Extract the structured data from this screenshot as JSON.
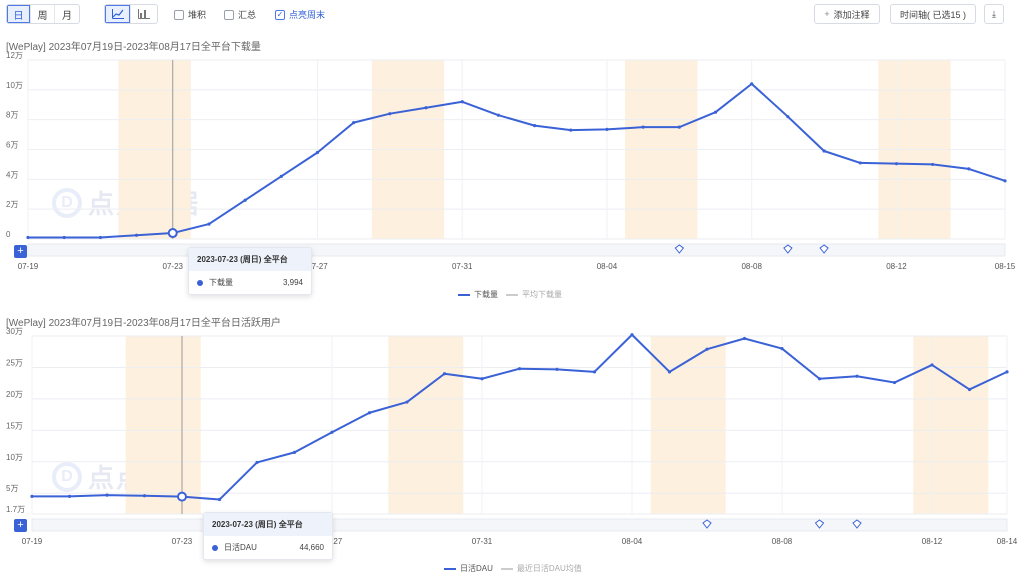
{
  "toolbar": {
    "granularity": [
      "日",
      "周",
      "月"
    ],
    "chart_types": [
      "line-chart-icon",
      "bar-chart-icon"
    ],
    "checks": [
      {
        "label": "堆积",
        "checked": false
      },
      {
        "label": "汇总",
        "checked": false
      },
      {
        "label": "点亮周末",
        "checked": true
      }
    ],
    "add_annotation": "添加注释",
    "timeline": "时间轴( 已选15 )",
    "download_icon": "download-icon"
  },
  "charts": [
    {
      "title": "[WePlay]  2023年07月19日-2023年08月17日全平台下载量",
      "y_ticks": [
        "0",
        "2万",
        "4万",
        "6万",
        "8万",
        "10万",
        "12万"
      ],
      "x_ticks": [
        "07-19",
        "07-23",
        "07-27",
        "07-31",
        "08-04",
        "08-08",
        "08-12",
        "08-15"
      ],
      "tooltip": {
        "header": "2023-07-23 (周日) 全平台",
        "series": "下载量",
        "value": "3,994"
      },
      "legend": [
        {
          "name": "下载量",
          "active": true
        },
        {
          "name": "平均下载量",
          "active": false
        }
      ],
      "watermark": "点点数据"
    },
    {
      "title": "[WePlay]  2023年07月19日-2023年08月17日全平台日活跃用户",
      "y_ticks": [
        "1.7万",
        "5万",
        "10万",
        "15万",
        "20万",
        "25万",
        "30万"
      ],
      "x_ticks": [
        "07-19",
        "07-23",
        "07-27",
        "07-31",
        "08-04",
        "08-08",
        "08-12",
        "08-14"
      ],
      "tooltip": {
        "header": "2023-07-23 (周日) 全平台",
        "series": "日活DAU",
        "value": "44,660"
      },
      "legend": [
        {
          "name": "日活DAU",
          "active": true
        },
        {
          "name": "最近日活DAU均值",
          "active": false
        }
      ],
      "watermark": "点点数据"
    }
  ],
  "chart_data": [
    {
      "type": "line",
      "title": "[WePlay]  2023年07月19日-2023年08月17日全平台下载量",
      "x": [
        "07-19",
        "07-20",
        "07-21",
        "07-22",
        "07-23",
        "07-24",
        "07-25",
        "07-26",
        "07-27",
        "07-28",
        "07-29",
        "07-30",
        "07-31",
        "08-01",
        "08-02",
        "08-03",
        "08-04",
        "08-05",
        "08-06",
        "08-07",
        "08-08",
        "08-09",
        "08-10",
        "08-11",
        "08-12",
        "08-13",
        "08-14",
        "08-15"
      ],
      "series": [
        {
          "name": "下载量",
          "values": [
            1000,
            1000,
            1000,
            2500,
            3994,
            10000,
            26000,
            42000,
            58000,
            78000,
            84000,
            88000,
            92000,
            83000,
            76000,
            73000,
            73500,
            75000,
            75000,
            85000,
            104000,
            82000,
            59000,
            51000,
            50500,
            50000,
            47000,
            39000
          ]
        }
      ],
      "ylim": [
        0,
        120000
      ],
      "y_ticks": [
        0,
        20000,
        40000,
        60000,
        80000,
        100000,
        120000
      ],
      "weekend_bands": [
        [
          "07-22",
          "07-23"
        ],
        [
          "07-29",
          "07-30"
        ],
        [
          "08-05",
          "08-06"
        ],
        [
          "08-12",
          "08-13"
        ]
      ],
      "color": "#3a62d6"
    },
    {
      "type": "line",
      "title": "[WePlay]  2023年07月19日-2023年08月17日全平台日活跃用户",
      "x": [
        "07-19",
        "07-20",
        "07-21",
        "07-22",
        "07-23",
        "07-24",
        "07-25",
        "07-26",
        "07-27",
        "07-28",
        "07-29",
        "07-30",
        "07-31",
        "08-01",
        "08-02",
        "08-03",
        "08-04",
        "08-05",
        "08-06",
        "08-07",
        "08-08",
        "08-09",
        "08-10",
        "08-11",
        "08-12",
        "08-13",
        "08-14"
      ],
      "series": [
        {
          "name": "日活DAU",
          "values": [
            45000,
            45000,
            47000,
            46000,
            44660,
            40000,
            99000,
            115000,
            147000,
            178000,
            195000,
            240000,
            232000,
            248000,
            247000,
            243000,
            302000,
            243000,
            279000,
            296000,
            280000,
            232000,
            236000,
            226000,
            254000,
            215000,
            243000
          ]
        }
      ],
      "ylim": [
        17000,
        300000
      ],
      "y_ticks": [
        17000,
        50000,
        100000,
        150000,
        200000,
        250000,
        300000
      ],
      "weekend_bands": [
        [
          "07-22",
          "07-23"
        ],
        [
          "07-29",
          "07-30"
        ],
        [
          "08-05",
          "08-06"
        ],
        [
          "08-12",
          "08-13"
        ]
      ],
      "color": "#3a62d6"
    }
  ]
}
